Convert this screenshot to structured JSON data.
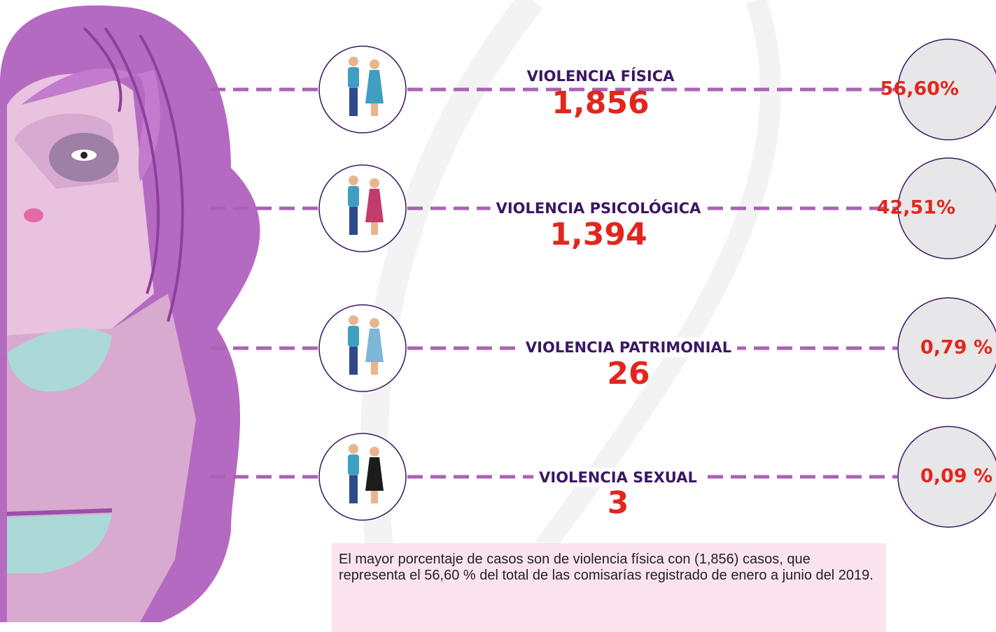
{
  "items": [
    {
      "label": "VIOLENCIA FÍSICA",
      "count": "1,856",
      "percent": "56,60%"
    },
    {
      "label": "VIOLENCIA PSICOLÓGICA",
      "count": "1,394",
      "percent": "42,51%"
    },
    {
      "label": "VIOLENCIA PATRIMONIAL",
      "count": "26",
      "percent": "0,79 %"
    },
    {
      "label": "VIOLENCIA SEXUAL",
      "count": "3",
      "percent": "0,09 %"
    }
  ],
  "note": "El mayor porcentaje de casos son de violencia física con (1,856) casos, que representa el 56,60 % del total de las comisarías registrado de enero a junio del 2019."
}
